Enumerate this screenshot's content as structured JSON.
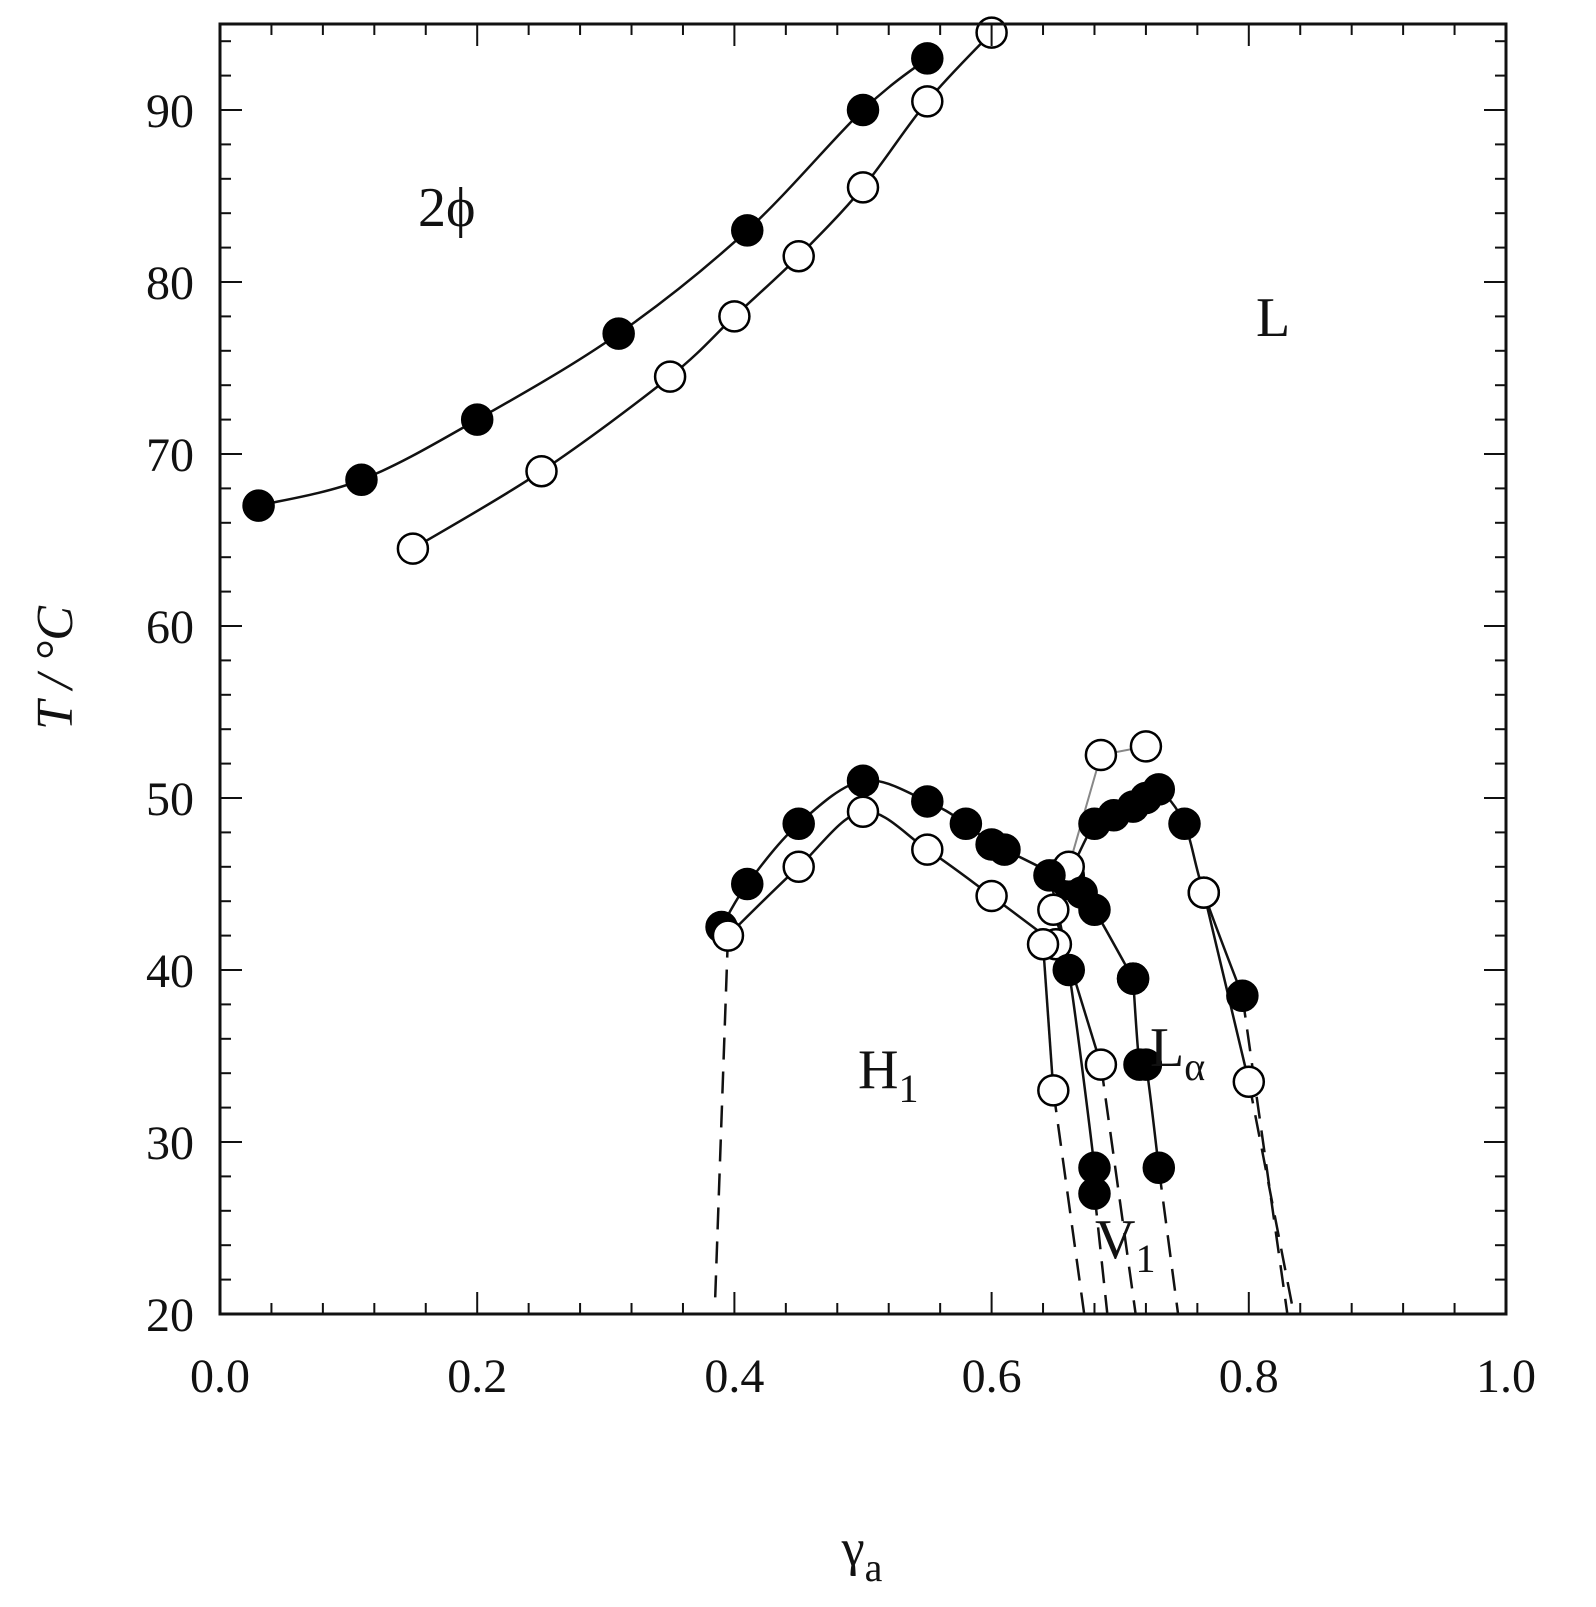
{
  "chart_data": {
    "type": "scatter",
    "title": "",
    "xlabel": "γ",
    "xlabel_sub": "a",
    "ylabel": "T / °C",
    "xlim": [
      0.0,
      1.0
    ],
    "ylim": [
      20,
      95
    ],
    "xticks": [
      0.0,
      0.2,
      0.4,
      0.6,
      0.8,
      1.0
    ],
    "xtick_labels": [
      "0.0",
      "0.2",
      "0.4",
      "0.6",
      "0.8",
      "1.0"
    ],
    "yticks": [
      20,
      30,
      40,
      50,
      60,
      70,
      80,
      90
    ],
    "ytick_labels": [
      "20",
      "30",
      "40",
      "50",
      "60",
      "70",
      "80",
      "90"
    ],
    "grid": false,
    "legend": "none",
    "region_labels": [
      {
        "text": "2ϕ",
        "sub": ""
      },
      {
        "text": "L",
        "sub": ""
      },
      {
        "text": "H",
        "sub": "1"
      },
      {
        "text": "L",
        "sub": "α"
      },
      {
        "text": "V",
        "sub": "1"
      }
    ],
    "series": [
      {
        "marker": "filled",
        "line": "solid",
        "x": [
          0.03,
          0.11,
          0.2,
          0.31,
          0.41,
          0.5,
          0.55
        ],
        "y": [
          67.0,
          68.5,
          72.0,
          77.0,
          83.0,
          90.0,
          93.0
        ]
      },
      {
        "marker": "open",
        "line": "solid",
        "x": [
          0.15,
          0.25,
          0.35,
          0.4,
          0.45,
          0.5,
          0.55,
          0.6
        ],
        "y": [
          64.5,
          69.0,
          74.5,
          78.0,
          81.5,
          85.5,
          90.5,
          94.5
        ]
      },
      {
        "marker": "filled",
        "line": "solid",
        "x": [
          0.39,
          0.41,
          0.45,
          0.5,
          0.55,
          0.58,
          0.6,
          0.61,
          0.65,
          0.66
        ],
        "y": [
          42.5,
          45.0,
          48.5,
          51.0,
          49.8,
          48.5,
          47.3,
          47.0,
          45.5,
          45.0
        ]
      },
      {
        "marker": "open",
        "line": "solid",
        "x": [
          0.395,
          0.45,
          0.5,
          0.55,
          0.6,
          0.65
        ],
        "y": [
          42.0,
          46.0,
          49.2,
          47.0,
          44.3,
          41.5
        ]
      },
      {
        "marker": "filled",
        "line": "solid",
        "x": [
          0.66,
          0.68,
          0.695,
          0.71,
          0.72,
          0.73,
          0.75,
          0.765,
          0.795
        ],
        "y": [
          45.5,
          48.5,
          49.0,
          49.5,
          50.0,
          50.5,
          48.5,
          44.5,
          38.5
        ]
      },
      {
        "marker": "open",
        "line": "solid",
        "x": [
          0.765,
          0.8
        ],
        "y": [
          44.5,
          33.5
        ]
      },
      {
        "marker": "open",
        "line": "gray",
        "x": [
          0.66,
          0.685,
          0.72
        ],
        "y": [
          46.0,
          52.5,
          53.0
        ]
      },
      {
        "marker": "filled",
        "line": "solid",
        "x": [
          0.67,
          0.68,
          0.71,
          0.71,
          0.715,
          0.72,
          0.73
        ],
        "y": [
          44.5,
          43.5,
          39.5,
          39.5,
          34.5,
          34.5,
          28.5
        ]
      },
      {
        "marker": "filled",
        "line": "solid",
        "x": [
          0.645,
          0.66,
          0.68,
          0.68
        ],
        "y": [
          45.5,
          40.0,
          28.5,
          27.0
        ]
      },
      {
        "marker": "open",
        "line": "solid",
        "x": [
          0.648,
          0.685
        ],
        "y": [
          43.5,
          34.5
        ]
      },
      {
        "marker": "open",
        "line": "solid",
        "x": [
          0.64,
          0.648
        ],
        "y": [
          41.5,
          33.0
        ]
      },
      {
        "marker": "none",
        "line": "dashed",
        "x": [
          0.395,
          0.385
        ],
        "y": [
          42.0,
          20.8
        ]
      },
      {
        "marker": "none",
        "line": "dashed",
        "x": [
          0.648,
          0.672
        ],
        "y": [
          33.0,
          20.0
        ]
      },
      {
        "marker": "none",
        "line": "dashed",
        "x": [
          0.68,
          0.69
        ],
        "y": [
          27.0,
          20.0
        ]
      },
      {
        "marker": "none",
        "line": "dashed",
        "x": [
          0.685,
          0.712
        ],
        "y": [
          34.5,
          20.0
        ]
      },
      {
        "marker": "none",
        "line": "dashed",
        "x": [
          0.73,
          0.745
        ],
        "y": [
          28.5,
          20.0
        ]
      },
      {
        "marker": "none",
        "line": "dashed",
        "x": [
          0.795,
          0.83
        ],
        "y": [
          38.5,
          20.0
        ]
      },
      {
        "marker": "none",
        "line": "dashed",
        "x": [
          0.8,
          0.835
        ],
        "y": [
          33.5,
          20.0
        ]
      }
    ]
  }
}
